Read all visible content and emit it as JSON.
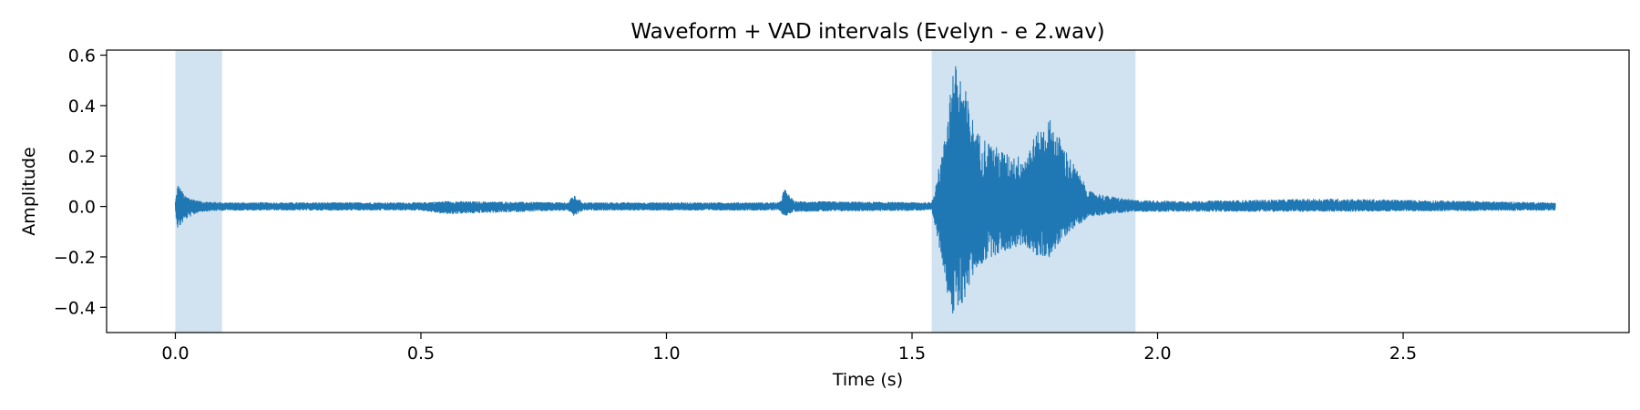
{
  "chart_data": {
    "type": "line",
    "title": "Waveform + VAD intervals (Evelyn - e 2.wav)",
    "xlabel": "Time (s)",
    "ylabel": "Amplitude",
    "xlim": [
      -0.14,
      2.96
    ],
    "ylim": [
      -0.5,
      0.62
    ],
    "x_ticks": [
      0.0,
      0.5,
      1.0,
      1.5,
      2.0,
      2.5
    ],
    "x_tick_labels": [
      "0.0",
      "0.5",
      "1.0",
      "1.5",
      "2.0",
      "2.5"
    ],
    "y_ticks": [
      0.6,
      0.4,
      0.2,
      0.0,
      -0.2,
      -0.4
    ],
    "y_tick_labels": [
      "0.6",
      "0.4",
      "0.2",
      "0.0",
      "−0.2",
      "−0.4"
    ],
    "grid": false,
    "legend": false,
    "duration_s": 2.81,
    "series": [
      {
        "color": "#1f77b4",
        "envelope": {
          "t": [
            0.0,
            0.005,
            0.02,
            0.05,
            0.1,
            0.5,
            0.55,
            0.8,
            0.81,
            0.83,
            1.23,
            1.24,
            1.26,
            1.54,
            1.565,
            1.575,
            1.585,
            1.6,
            1.63,
            1.66,
            1.7,
            1.73,
            1.75,
            1.78,
            1.82,
            1.86,
            1.9,
            1.95,
            2.05,
            2.35,
            2.8
          ],
          "upper": [
            0.02,
            0.09,
            0.04,
            0.02,
            0.015,
            0.015,
            0.02,
            0.015,
            0.045,
            0.015,
            0.015,
            0.07,
            0.02,
            0.015,
            0.25,
            0.45,
            0.57,
            0.53,
            0.3,
            0.25,
            0.2,
            0.2,
            0.28,
            0.35,
            0.2,
            0.06,
            0.04,
            0.025,
            0.02,
            0.03,
            0.015
          ],
          "lower": [
            -0.02,
            -0.09,
            -0.05,
            -0.02,
            -0.015,
            -0.015,
            -0.03,
            -0.015,
            -0.04,
            -0.015,
            -0.015,
            -0.04,
            -0.02,
            -0.015,
            -0.25,
            -0.38,
            -0.46,
            -0.4,
            -0.25,
            -0.2,
            -0.17,
            -0.15,
            -0.2,
            -0.2,
            -0.1,
            -0.04,
            -0.03,
            -0.02,
            -0.02,
            -0.02,
            -0.015
          ]
        }
      }
    ],
    "vad_intervals": [
      {
        "start": 0.0,
        "end": 0.095
      },
      {
        "start": 1.54,
        "end": 1.955
      }
    ],
    "vad_color": "#b3cfe6"
  }
}
